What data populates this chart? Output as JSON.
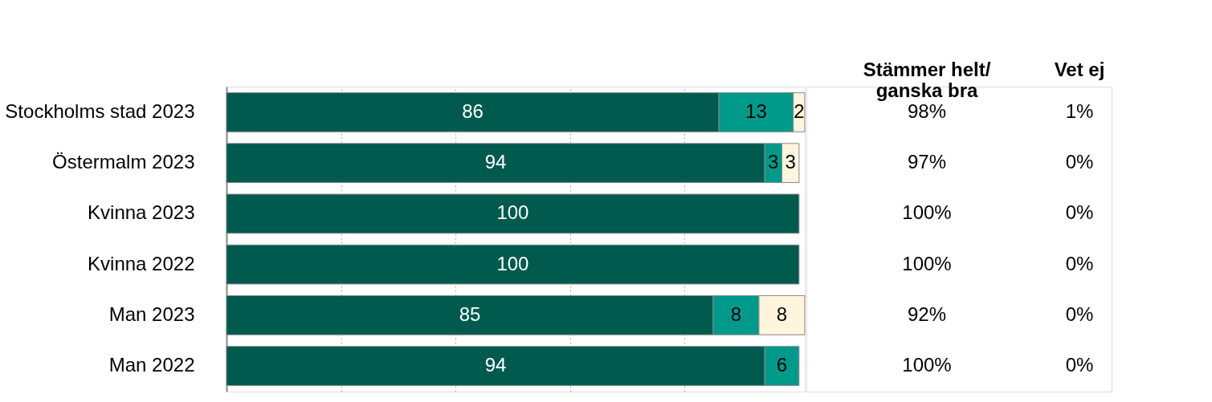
{
  "chart_data": {
    "type": "bar",
    "orientation": "horizontal",
    "stacked": true,
    "data_labels": true,
    "grid": "x",
    "tick_labels": "y",
    "categories": [
      "Stockholms stad 2023",
      "Östermalm 2023",
      "Kvinna 2023",
      "Kvinna 2022",
      "Man 2023",
      "Man 2022"
    ],
    "series": [
      {
        "color": "#005a4e",
        "values": [
          86,
          94,
          100,
          100,
          85,
          94
        ]
      },
      {
        "color": "#009a8a",
        "values": [
          13,
          3,
          null,
          null,
          8,
          6
        ]
      },
      {
        "color": "#fff5dc",
        "values": [
          2,
          3,
          null,
          null,
          8,
          null
        ]
      }
    ],
    "xlim": [
      0,
      101
    ],
    "xticks": [
      {
        "value": 20,
        "label": null
      },
      {
        "value": 40,
        "label": null
      },
      {
        "value": 60,
        "label": null
      },
      {
        "value": 80,
        "label": null
      }
    ],
    "annotations": [
      "Stämmer helt/\nganska bra",
      "Vet ej",
      "98%",
      "1%",
      "97%",
      "0%",
      "100%",
      "0%",
      "100%",
      "0%",
      "92%",
      "0%",
      "100%",
      "0%"
    ]
  }
}
